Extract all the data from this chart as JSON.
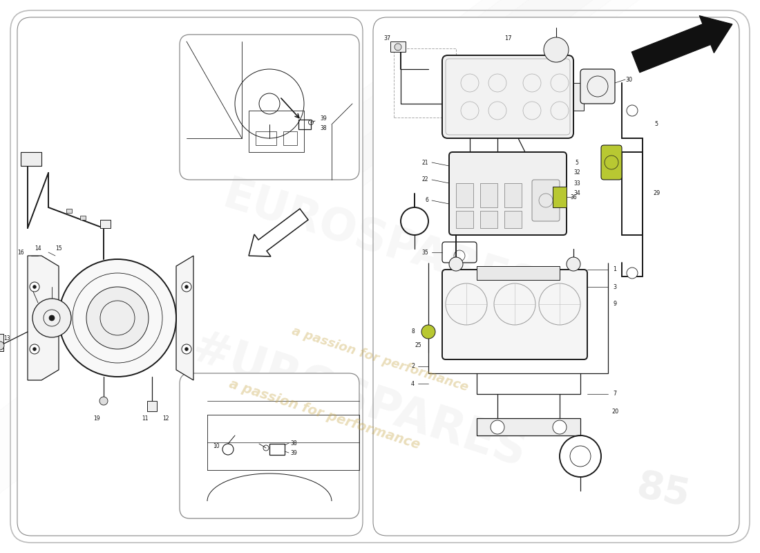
{
  "bg": "#ffffff",
  "lc": "#1a1a1a",
  "lc_light": "#666666",
  "wm_text": "a passion for performance",
  "wm_color": "#c8a84b",
  "wm_alpha": 0.38,
  "euro_color": "#aaaaaa",
  "euro_alpha": 0.13,
  "highlight": "#b8c832",
  "panel_edge": "#888888",
  "outer_edge": "#bbbbbb"
}
